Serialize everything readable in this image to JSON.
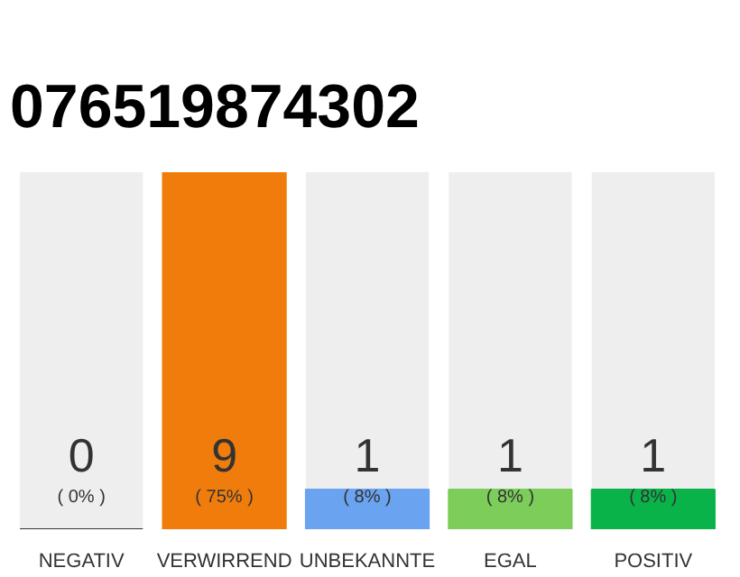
{
  "chart_data": {
    "type": "bar",
    "title": "076519874302",
    "categories": [
      "NEGATIV",
      "VERWIRREND",
      "UNBEKANNTE",
      "EGAL",
      "POSITIV"
    ],
    "values": [
      0,
      9,
      1,
      1,
      1
    ],
    "colors": [
      "#333333",
      "#f07c0b",
      "#6aa3f0",
      "#7ccd5a",
      "#0ab34a"
    ],
    "ylim": [
      0,
      9
    ],
    "data_labels": true,
    "grid": false,
    "annotations": [
      "( 0% )",
      "( 75% )",
      "( 8% )",
      "( 8% )",
      "( 8% )"
    ]
  }
}
